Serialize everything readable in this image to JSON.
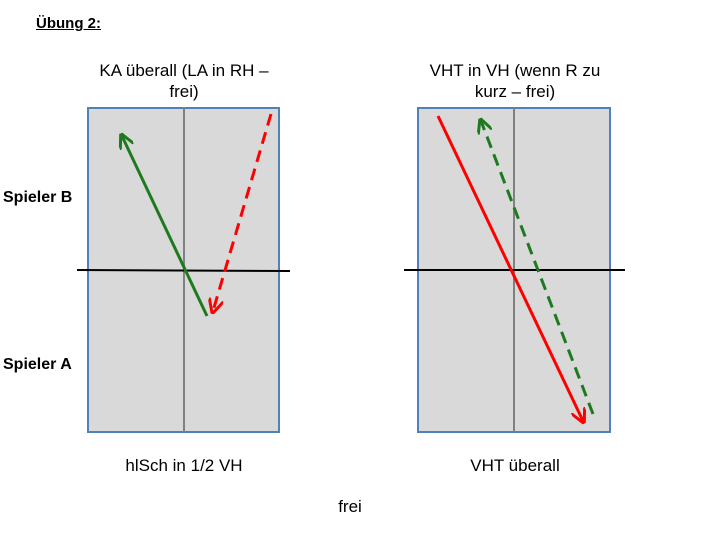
{
  "slide": {
    "heading": "Übung 2:",
    "player_b": "Spieler B",
    "player_a": "Spieler A",
    "footer": "frei"
  },
  "panels": [
    {
      "title_line1": "KA überall (LA in RH –",
      "title_line2": "frei)",
      "caption": "hlSch in 1/2 VH"
    },
    {
      "title_line1": "VHT in VH (wenn R zu",
      "title_line2": "kurz – frei)",
      "caption": "VHT überall"
    }
  ],
  "colors": {
    "table_fill": "#d9d9d9",
    "table_border": "#4f81bd",
    "center_line": "#808080",
    "net": "#000000",
    "green": "#1e7a1e",
    "red": "#ff0000"
  }
}
